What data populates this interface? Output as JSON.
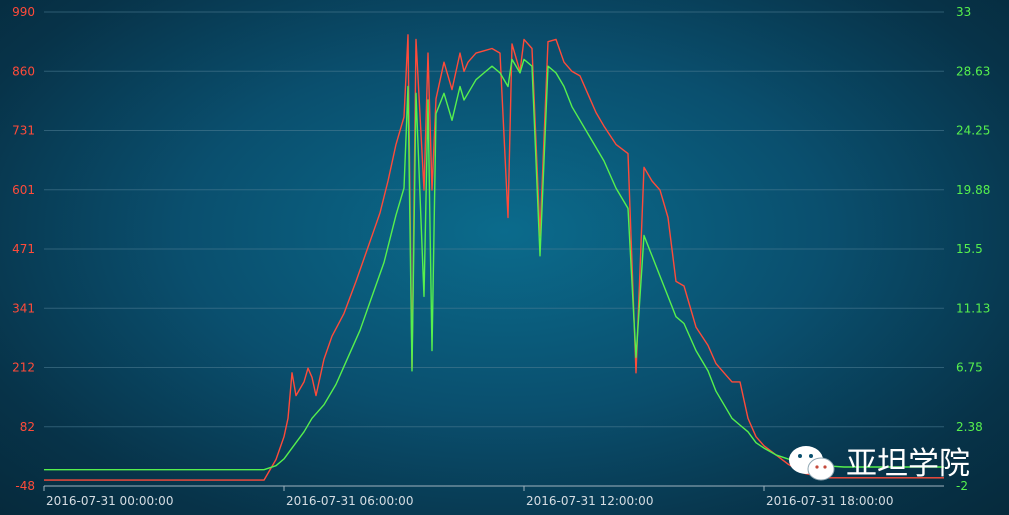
{
  "chart_data": {
    "type": "line",
    "title": "",
    "xlabel": "",
    "ylabel": "",
    "x_tick_labels": [
      "2016-07-31 00:00:00",
      "2016-07-31 06:00:00",
      "2016-07-31 12:00:00",
      "2016-07-31 18:00:00"
    ],
    "x_tick_hours": [
      0,
      6,
      12,
      18
    ],
    "xlim_hours": [
      0,
      22.5
    ],
    "y_left": {
      "ticks": [
        "990",
        "860",
        "731",
        "601",
        "471",
        "341",
        "212",
        "82",
        "-48"
      ],
      "ylim": [
        -48,
        990
      ],
      "color": "#ff4b3a"
    },
    "y_right": {
      "ticks": [
        "33",
        "28.63",
        "24.25",
        "19.88",
        "15.5",
        "11.13",
        "6.75",
        "2.38",
        "-2"
      ],
      "ylim": [
        -2,
        33
      ],
      "color": "#56f04d"
    },
    "grid": true,
    "legend": "none",
    "series": [
      {
        "axis": "left",
        "color": "#ff4b3a",
        "x_hours": [
          0,
          5.3,
          5.5,
          5.8,
          6.0,
          6.1,
          6.2,
          6.3,
          6.5,
          6.6,
          6.7,
          6.8,
          7.0,
          7.2,
          7.5,
          7.8,
          8.0,
          8.2,
          8.4,
          8.6,
          8.8,
          9.0,
          9.1,
          9.2,
          9.3,
          9.5,
          9.6,
          9.7,
          9.8,
          10.0,
          10.2,
          10.4,
          10.5,
          10.6,
          10.8,
          11.0,
          11.2,
          11.4,
          11.6,
          11.7,
          11.9,
          12.0,
          12.2,
          12.4,
          12.6,
          12.8,
          13.0,
          13.2,
          13.4,
          13.6,
          13.8,
          14.0,
          14.3,
          14.6,
          14.8,
          15.0,
          15.2,
          15.4,
          15.6,
          15.8,
          16.0,
          16.3,
          16.6,
          16.8,
          17.0,
          17.2,
          17.4,
          17.6,
          17.8,
          18.0,
          18.3,
          18.6,
          19.0,
          19.5,
          20.0,
          20.5,
          21.0,
          21.5,
          22.5
        ],
        "y": [
          -35,
          -35,
          -35,
          10,
          60,
          100,
          200,
          150,
          180,
          210,
          190,
          150,
          230,
          280,
          330,
          400,
          450,
          500,
          550,
          620,
          700,
          760,
          940,
          210,
          930,
          600,
          900,
          600,
          800,
          880,
          820,
          900,
          860,
          880,
          900,
          905,
          910,
          900,
          540,
          920,
          860,
          930,
          910,
          500,
          925,
          930,
          880,
          860,
          850,
          810,
          770,
          740,
          700,
          680,
          200,
          650,
          620,
          600,
          540,
          400,
          390,
          300,
          260,
          220,
          200,
          180,
          180,
          100,
          60,
          40,
          20,
          0,
          -20,
          -30,
          -30,
          -30,
          -30,
          -30,
          -30
        ]
      },
      {
        "axis": "right",
        "color": "#56f04d",
        "x_hours": [
          0,
          5.3,
          5.5,
          5.8,
          6.0,
          6.2,
          6.5,
          6.7,
          7.0,
          7.3,
          7.6,
          7.9,
          8.2,
          8.5,
          8.8,
          9.0,
          9.1,
          9.2,
          9.3,
          9.5,
          9.6,
          9.7,
          9.8,
          10.0,
          10.2,
          10.4,
          10.5,
          10.6,
          10.8,
          11.0,
          11.2,
          11.4,
          11.6,
          11.7,
          11.9,
          12.0,
          12.2,
          12.4,
          12.6,
          12.8,
          13.0,
          13.2,
          13.4,
          13.6,
          13.8,
          14.0,
          14.3,
          14.6,
          14.8,
          15.0,
          15.2,
          15.4,
          15.6,
          15.8,
          16.0,
          16.3,
          16.6,
          16.8,
          17.0,
          17.2,
          17.4,
          17.6,
          17.8,
          18.0,
          18.3,
          18.6,
          19.0,
          19.5,
          20.0,
          20.5,
          21.0,
          21.5,
          22.5
        ],
        "y": [
          -0.8,
          -0.8,
          -0.8,
          -0.5,
          0,
          0.8,
          2.0,
          3.0,
          4.0,
          5.5,
          7.5,
          9.5,
          12.0,
          14.5,
          18.0,
          20.0,
          27.5,
          6.5,
          27.0,
          12.0,
          26.5,
          8.0,
          25.5,
          27.0,
          25.0,
          27.5,
          26.5,
          27.0,
          28.0,
          28.5,
          29.0,
          28.5,
          27.5,
          29.5,
          28.5,
          29.5,
          29.0,
          15.0,
          29.0,
          28.5,
          27.5,
          26.0,
          25.0,
          24.0,
          23.0,
          22.0,
          20.0,
          18.5,
          7.5,
          16.5,
          15.0,
          13.5,
          12.0,
          10.5,
          10.0,
          8.0,
          6.5,
          5.0,
          4.0,
          3.0,
          2.5,
          2.0,
          1.2,
          0.8,
          0.3,
          0,
          -0.3,
          -0.5,
          -0.6,
          -0.6,
          -0.6,
          -0.6,
          -0.6
        ]
      }
    ]
  },
  "watermark": {
    "text": "亚坦学院",
    "icon": "wechat-icon"
  }
}
